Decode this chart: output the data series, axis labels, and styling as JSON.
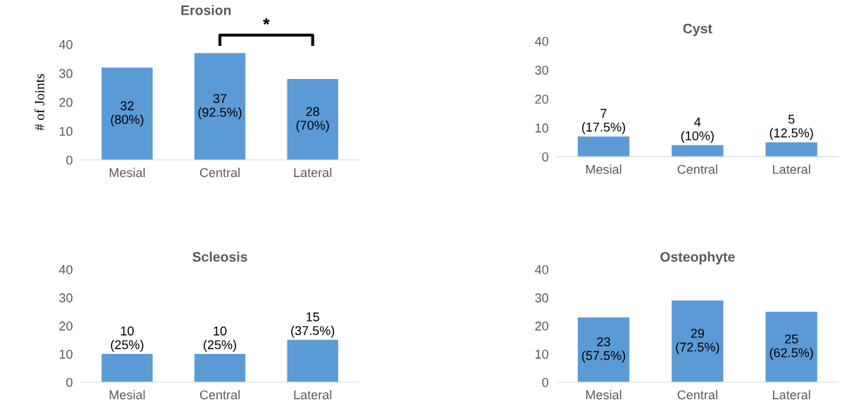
{
  "chart_data": [
    {
      "type": "bar",
      "title": "Erosion",
      "ylabel": "# of Joints",
      "categories": [
        "Mesial",
        "Central",
        "Lateral"
      ],
      "values": [
        32,
        37,
        28
      ],
      "value_labels": [
        "32\n(80%)",
        "37\n(92.5%)",
        "28\n(70%)"
      ],
      "color": "#5b9bd5",
      "ylim": [
        0,
        40
      ],
      "yticks": [
        0,
        10,
        20,
        30,
        40
      ],
      "annotations": [
        "*"
      ]
    },
    {
      "type": "bar",
      "title": "Cyst",
      "categories": [
        "Mesial",
        "Central",
        "Lateral"
      ],
      "values": [
        7,
        4,
        5
      ],
      "value_labels": [
        "7\n(17.5%)",
        "4\n(10%)",
        "5\n(12.5%)"
      ],
      "color": "#5b9bd5",
      "ylim": [
        0,
        40
      ],
      "yticks": [
        0,
        10,
        20,
        30,
        40
      ]
    },
    {
      "type": "bar",
      "title": "Scleosis",
      "categories": [
        "Mesial",
        "Central",
        "Lateral"
      ],
      "values": [
        10,
        10,
        15
      ],
      "value_labels": [
        "10\n(25%)",
        "10\n(25%)",
        "15\n(37.5%)"
      ],
      "color": "#5b9bd5",
      "ylim": [
        0,
        40
      ],
      "yticks": [
        0,
        10,
        20,
        30,
        40
      ]
    },
    {
      "type": "bar",
      "title": "Osteophyte",
      "categories": [
        "Mesial",
        "Central",
        "Lateral"
      ],
      "values": [
        23,
        29,
        25
      ],
      "value_labels": [
        "23\n(57.5%)",
        "29\n(72.5%)",
        "25\n(62.5%)"
      ],
      "color": "#5b9bd5",
      "ylim": [
        0,
        40
      ],
      "yticks": [
        0,
        10,
        20,
        30,
        40
      ]
    }
  ]
}
